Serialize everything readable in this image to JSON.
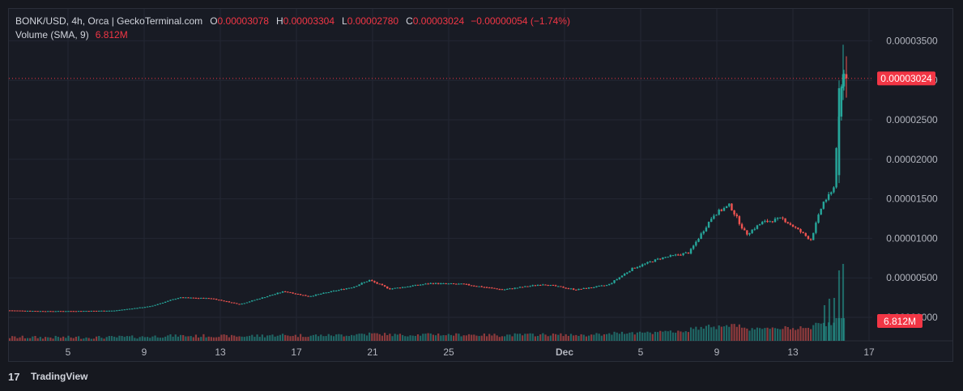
{
  "header": {
    "symbol": "BONK/USD, 4h, Orca | GeckoTerminal.com",
    "open_label": "O",
    "open": "0.00003078",
    "high_label": "H",
    "high": "0.00003304",
    "low_label": "L",
    "low": "0.00002780",
    "close_label": "C",
    "close": "0.00003024",
    "change": "−0.00000054 (−1.74%)",
    "volume_label": "Volume (SMA, 9)",
    "volume_value": "6.812M"
  },
  "price_tag": "0.00003024",
  "volume_tag": "6.812M",
  "footer": {
    "brand": "TradingView",
    "logo_text": "17"
  },
  "colors": {
    "up": "#26a69a",
    "down": "#ef5350",
    "background": "#181b24",
    "grid": "#232733",
    "tag": "#f23645"
  },
  "chart_data": {
    "type": "candlestick",
    "title": "BONK/USD, 4h, Orca",
    "ylim": [
      0,
      3.75e-05
    ],
    "yticks": [
      "0.00003500",
      "0.00003000",
      "0.00002500",
      "0.00002000",
      "0.00001500",
      "0.00001000",
      "0.00000500",
      "0.00000000"
    ],
    "xticks": [
      "5",
      "9",
      "13",
      "17",
      "21",
      "25",
      "Dec",
      "5",
      "9",
      "13",
      "17"
    ],
    "last_price": 3.024e-05,
    "volume_sma": "6.812M",
    "anchors": [
      {
        "x": 0,
        "price": 8.8e-07
      },
      {
        "x": 45,
        "price": 7.8e-07
      },
      {
        "x": 85,
        "price": 8e-07
      },
      {
        "x": 130,
        "price": 8.5e-07
      },
      {
        "x": 175,
        "price": 1.4e-06
      },
      {
        "x": 210,
        "price": 2.5e-06
      },
      {
        "x": 250,
        "price": 2.4e-06
      },
      {
        "x": 285,
        "price": 1.65e-06
      },
      {
        "x": 340,
        "price": 3.3e-06
      },
      {
        "x": 370,
        "price": 2.65e-06
      },
      {
        "x": 425,
        "price": 3.85e-06
      },
      {
        "x": 445,
        "price": 4.7e-06
      },
      {
        "x": 470,
        "price": 3.6e-06
      },
      {
        "x": 520,
        "price": 4.3e-06
      },
      {
        "x": 560,
        "price": 4.2e-06
      },
      {
        "x": 610,
        "price": 3.5e-06
      },
      {
        "x": 660,
        "price": 4.2e-06
      },
      {
        "x": 700,
        "price": 3.5e-06
      },
      {
        "x": 740,
        "price": 4.1e-06
      },
      {
        "x": 770,
        "price": 6.2e-06
      },
      {
        "x": 805,
        "price": 7.5e-06
      },
      {
        "x": 840,
        "price": 8.2e-06
      },
      {
        "x": 870,
        "price": 1.3e-05
      },
      {
        "x": 890,
        "price": 1.42e-05
      },
      {
        "x": 910,
        "price": 1.05e-05
      },
      {
        "x": 930,
        "price": 1.2e-05
      },
      {
        "x": 955,
        "price": 1.25e-05
      },
      {
        "x": 975,
        "price": 1.1e-05
      },
      {
        "x": 990,
        "price": 9.8e-06
      },
      {
        "x": 1005,
        "price": 1.45e-05
      },
      {
        "x": 1018,
        "price": 1.6e-05
      },
      {
        "x": 1024,
        "price": 2.5e-05
      },
      {
        "x": 1030,
        "price": 3.078e-05
      },
      {
        "x": 1034,
        "price": 3.024e-05
      }
    ]
  }
}
